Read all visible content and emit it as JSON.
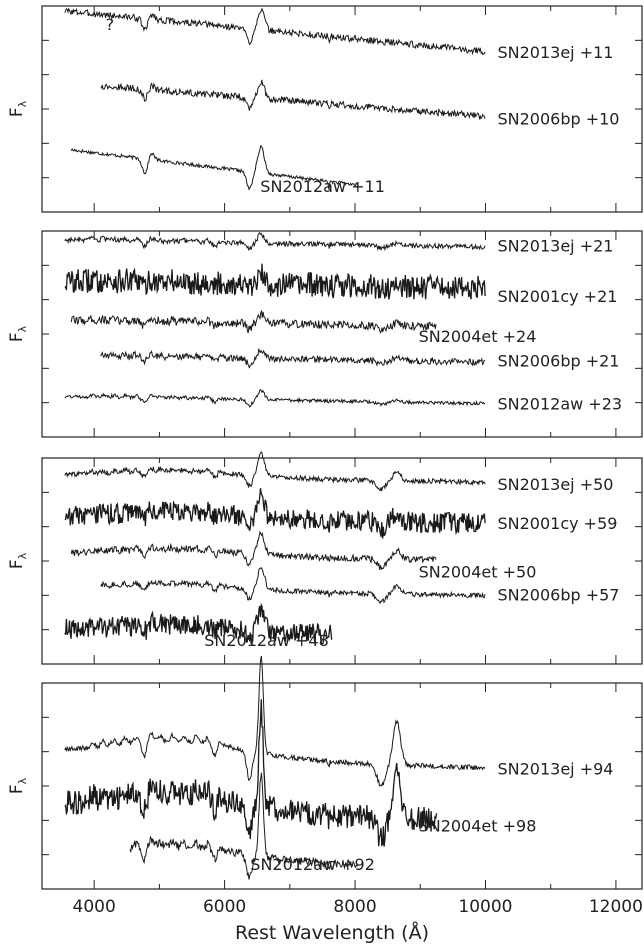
{
  "chart_data": {
    "type": "line",
    "xlabel": "Rest Wavelength (Å)",
    "xlim": [
      3200,
      12400
    ],
    "x_ticks": [
      4000,
      6000,
      8000,
      10000,
      12000
    ],
    "x_tick_labels": [
      "4000",
      "6000",
      "8000",
      "10000",
      "12000"
    ],
    "panels": [
      {
        "ylabel": "F",
        "ylabel_sub": "λ",
        "annotation": "?",
        "annotation_x": 3900,
        "spectra": [
          {
            "label": "SN2013ej +11",
            "start": 3550,
            "end": 10000,
            "offset": 0.78,
            "amp": 0.22,
            "noise": 0.008,
            "phase": 11,
            "color": "#1a1a1a"
          },
          {
            "label": "SN2006bp +10",
            "start": 4100,
            "end": 10000,
            "offset": 0.45,
            "amp": 0.18,
            "noise": 0.008,
            "phase": 10,
            "color": "#1a1a1a"
          },
          {
            "label": "SN2012aw +11",
            "start": 3650,
            "end": 8050,
            "offset": 0.08,
            "amp": 0.28,
            "noise": 0.004,
            "phase": 11,
            "color": "#1a1a1a"
          }
        ]
      },
      {
        "ylabel": "F",
        "ylabel_sub": "λ",
        "spectra": [
          {
            "label": "SN2013ej +21",
            "start": 3550,
            "end": 10000,
            "offset": 0.82,
            "amp": 0.1,
            "noise": 0.006,
            "phase": 21,
            "color": "#1a1a1a"
          },
          {
            "label": "SN2001cy +21",
            "start": 3550,
            "end": 10000,
            "offset": 0.62,
            "amp": 0.1,
            "noise": 0.03,
            "phase": 21,
            "color": "#1a1a1a"
          },
          {
            "label": "SN2004et +24",
            "start": 3650,
            "end": 9250,
            "offset": 0.43,
            "amp": 0.1,
            "noise": 0.01,
            "phase": 24,
            "color": "#1a1a1a"
          },
          {
            "label": "SN2006bp +21",
            "start": 4100,
            "end": 10000,
            "offset": 0.26,
            "amp": 0.1,
            "noise": 0.008,
            "phase": 21,
            "color": "#1a1a1a"
          },
          {
            "label": "SN2012aw +23",
            "start": 3550,
            "end": 10000,
            "offset": 0.06,
            "amp": 0.1,
            "noise": 0.004,
            "phase": 23,
            "color": "#1a1a1a"
          }
        ]
      },
      {
        "ylabel": "F",
        "ylabel_sub": "λ",
        "spectra": [
          {
            "label": "SN2013ej +50",
            "start": 3550,
            "end": 10000,
            "offset": 0.82,
            "amp": 0.12,
            "noise": 0.006,
            "phase": 50,
            "color": "#1a1a1a"
          },
          {
            "label": "SN2001cy +59",
            "start": 3550,
            "end": 10000,
            "offset": 0.62,
            "amp": 0.12,
            "noise": 0.025,
            "phase": 59,
            "color": "#1a1a1a"
          },
          {
            "label": "SN2004et +50",
            "start": 3650,
            "end": 9250,
            "offset": 0.44,
            "amp": 0.12,
            "noise": 0.008,
            "phase": 50,
            "color": "#1a1a1a"
          },
          {
            "label": "SN2006bp +57",
            "start": 4100,
            "end": 10000,
            "offset": 0.27,
            "amp": 0.12,
            "noise": 0.006,
            "phase": 57,
            "color": "#1a1a1a"
          },
          {
            "label": "SN2012aw +48",
            "start": 3550,
            "end": 7650,
            "offset": 0.07,
            "amp": 0.12,
            "noise": 0.025,
            "phase": 48,
            "color": "#1a1a1a"
          }
        ]
      },
      {
        "ylabel": "F",
        "ylabel_sub": "λ",
        "spectra": [
          {
            "label": "SN2013ej +94",
            "start": 3550,
            "end": 10000,
            "offset": 0.56,
            "amp": 0.3,
            "noise": 0.006,
            "phase": 94,
            "color": "#1a1a1a"
          },
          {
            "label": "SN2004et +98",
            "start": 3550,
            "end": 9250,
            "offset": 0.3,
            "amp": 0.3,
            "noise": 0.03,
            "phase": 98,
            "color": "#1a1a1a"
          },
          {
            "label": "SN2012aw +92",
            "start": 4550,
            "end": 8050,
            "offset": 0.06,
            "amp": 0.25,
            "noise": 0.01,
            "phase": 92,
            "color": "#1a1a1a"
          }
        ]
      }
    ]
  }
}
